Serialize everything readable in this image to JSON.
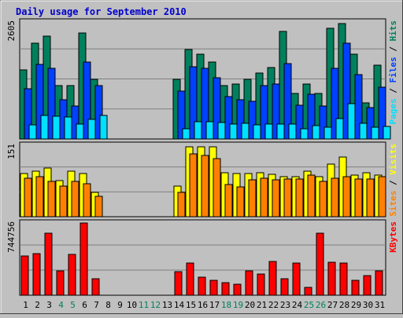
{
  "chart_data": {
    "type": "bar",
    "title": "Daily usage for September 2010",
    "colors": {
      "background": "#c0c0c0",
      "plot_background": "#c0c0c0",
      "title": "#0000cc",
      "hits": "#00805c",
      "files": "#0040ff",
      "pages": "#00e0ff",
      "visits": "#ffff00",
      "sites": "#ff8000",
      "kbytes": "#ff0000",
      "weekend_label": "#00805c",
      "weekday_label": "#000000"
    },
    "x": [
      "1",
      "2",
      "3",
      "4",
      "5",
      "6",
      "7",
      "8",
      "9",
      "10",
      "11",
      "12",
      "13",
      "14",
      "15",
      "16",
      "17",
      "18",
      "19",
      "20",
      "21",
      "22",
      "23",
      "24",
      "25",
      "26",
      "27",
      "28",
      "29",
      "30",
      "31"
    ],
    "weekend_days": [
      "4",
      "5",
      "11",
      "12",
      "18",
      "19",
      "25",
      "26"
    ],
    "panels": [
      {
        "id": "hits-files-pages",
        "axis_max_label": "2605",
        "ylim": [
          0,
          2605
        ],
        "right_label_parts": [
          {
            "text": "Pages",
            "color_key": "pages"
          },
          {
            "text": " / ",
            "color_key": "weekday_label"
          },
          {
            "text": "Files",
            "color_key": "files"
          },
          {
            "text": " / ",
            "color_key": "weekday_label"
          },
          {
            "text": "Hits",
            "color_key": "hits"
          }
        ],
        "series": [
          {
            "name": "Hits",
            "color_key": "hits",
            "values": [
              1535,
              2137,
              2292,
              1194,
              1194,
              2361,
              1329,
              null,
              null,
              null,
              null,
              null,
              null,
              1329,
              1986,
              1883,
              1707,
              1194,
              1227,
              1331,
              1469,
              1596,
              2397,
              1022,
              1227,
              1022,
              2465,
              2567,
              1882,
              807,
              1637
            ]
          },
          {
            "name": "Files",
            "color_key": "files",
            "values": [
              1125,
              1667,
              1567,
              877,
              733,
              1715,
              1192,
              null,
              null,
              null,
              null,
              null,
              null,
              1058,
              1605,
              1571,
              1363,
              940,
              875,
              845,
              1193,
              1230,
              1670,
              757,
              998,
              734,
              1581,
              2125,
              1433,
              705,
              1160
            ]
          },
          {
            "name": "Pages",
            "color_key": "pages",
            "values": [
              319,
              531,
              515,
              492,
              327,
              433,
              527,
              null,
              null,
              null,
              null,
              null,
              null,
              227,
              391,
              384,
              360,
              340,
              342,
              313,
              337,
              331,
              333,
              232,
              297,
              255,
              463,
              791,
              354,
              257,
              273
            ]
          }
        ]
      },
      {
        "id": "visits-sites",
        "axis_max_label": "151",
        "ylim": [
          0,
          151
        ],
        "right_label_parts": [
          {
            "text": "Sites",
            "color_key": "sites"
          },
          {
            "text": " / ",
            "color_key": "weekday_label"
          },
          {
            "text": "Visits",
            "color_key": "visits"
          }
        ],
        "series": [
          {
            "name": "Visits",
            "color_key": "visits",
            "values": [
              92,
              96,
              103,
              77,
              97,
              91,
              52,
              null,
              null,
              null,
              null,
              null,
              null,
              64,
              147,
              147,
              147,
              93,
              92,
              91,
              93,
              90,
              84,
              84,
              96,
              84,
              112,
              126,
              88,
              93,
              88
            ]
          },
          {
            "name": "Sites",
            "color_key": "sites",
            "values": [
              82,
              85,
              75,
              64,
              75,
              70,
              43,
              null,
              null,
              null,
              null,
              null,
              null,
              51,
              132,
              130,
              122,
              68,
              63,
              78,
              81,
              78,
              79,
              79,
              88,
              75,
              81,
              84,
              80,
              80,
              84
            ]
          }
        ]
      },
      {
        "id": "kbytes",
        "axis_max_label": "744756",
        "ylim": [
          0,
          744756
        ],
        "right_label_parts": [
          {
            "text": "KBytes",
            "color_key": "kbytes"
          }
        ],
        "series": [
          {
            "name": "KBytes",
            "color_key": "kbytes",
            "values": [
              404000,
              430000,
              640000,
              250000,
              420000,
              744756,
              170000,
              null,
              null,
              null,
              null,
              null,
              null,
              240000,
              330000,
              190000,
              150000,
              130000,
              110000,
              250000,
              220000,
              352000,
              170000,
              330000,
              80000,
              640000,
              340000,
              330000,
              150000,
              200000,
              250000
            ]
          }
        ]
      }
    ]
  }
}
